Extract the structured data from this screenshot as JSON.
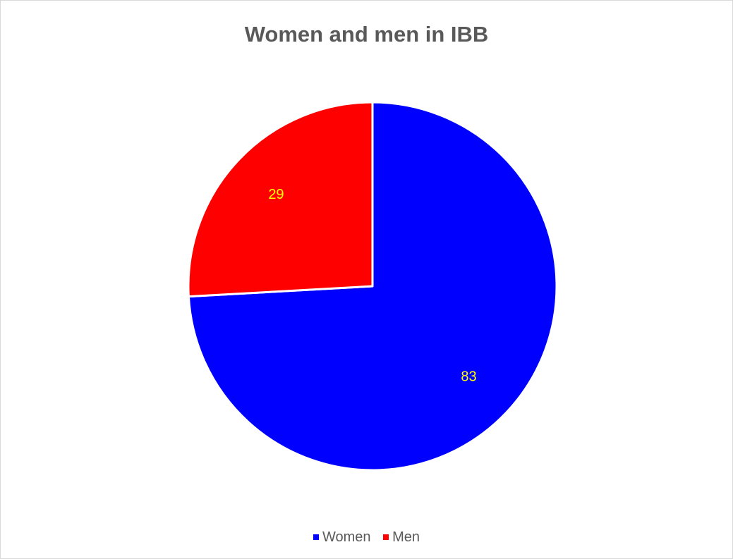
{
  "chart_data": {
    "type": "pie",
    "title": "Women and men in IBB",
    "categories": [
      "Women",
      "Men"
    ],
    "values": [
      83,
      29
    ],
    "colors": [
      "#0000ff",
      "#ff0000"
    ],
    "data_label_color": "#ffff00",
    "slice_border_color": "#ffffff",
    "legend_position": "bottom",
    "start_angle_deg": 0,
    "direction": "clockwise"
  }
}
